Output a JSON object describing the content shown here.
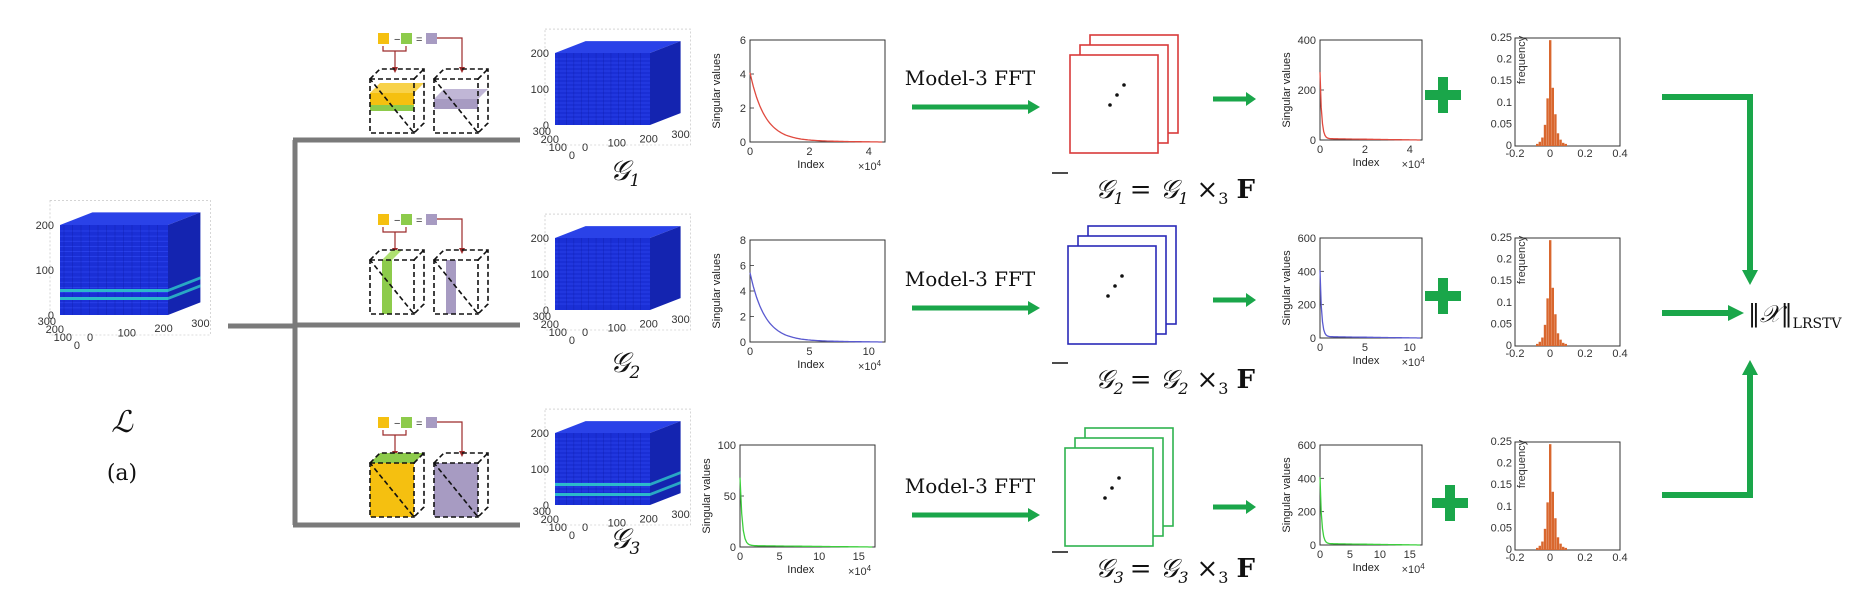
{
  "full_tensor_label": "ℒ",
  "panel_label": "(a)",
  "output_label": "‖𝒳‖",
  "output_subscript": "LRSTV",
  "colors": {
    "accent_green": "#1aa64a",
    "branch_gray": "#7a7a7a",
    "histogram": "#d9672e",
    "cube_blue": "#1a2fd6",
    "cube_highlight": "#2ec9c9",
    "slab_yellow": "#f5c010",
    "slab_green": "#8dcb4b",
    "slab_purple": "#a79bc2",
    "arrow_red": "#9c2a2a"
  },
  "operations": [
    "−",
    "="
  ],
  "cube_ticks": {
    "full": {
      "z": [
        "200",
        "100",
        "0"
      ],
      "y": [
        "300",
        "200",
        "100",
        "0"
      ],
      "x": [
        "0",
        "100",
        "200",
        "300"
      ]
    },
    "mode": {
      "z": [
        "200",
        "100",
        "0"
      ],
      "y": [
        "300",
        "200",
        "100",
        "0"
      ],
      "x": [
        "0",
        "100",
        "200",
        "300"
      ]
    }
  },
  "rows": [
    {
      "subtensor": "𝒢",
      "subscript": "1",
      "fft_label": "Model-3 FFT",
      "eq_lhs_sub": "1",
      "eq_rhs": "= 𝒢",
      "eq_rhs_sub": "1",
      "eq_op": "×",
      "eq_op_sub": "3",
      "eq_end": "F",
      "curve_color": "#e04a3f",
      "frame_color": "#d83a3a",
      "chart1": {
        "ylabel": "Singular values",
        "xlabel": "Index",
        "yticks": [
          "0",
          "2",
          "4",
          "6"
        ],
        "xticks": [
          "0",
          "2",
          "4"
        ],
        "xexp": "×10",
        "xexp_power": "4"
      },
      "chart2": {
        "ylabel": "Singular values",
        "xlabel": "Index",
        "yticks": [
          "0",
          "200",
          "400"
        ],
        "xticks": [
          "0",
          "2",
          "4"
        ],
        "xexp": "×10",
        "xexp_power": "4"
      },
      "hist": {
        "ylabel": "frequency",
        "yticks": [
          "0",
          "0.05",
          "0.1",
          "0.15",
          "0.2",
          "0.25"
        ],
        "xticks": [
          "-0.2",
          "0",
          "0.2",
          "0.4"
        ]
      }
    },
    {
      "subtensor": "𝒢",
      "subscript": "2",
      "fft_label": "Model-3 FFT",
      "eq_lhs_sub": "2",
      "eq_rhs": "= 𝒢",
      "eq_rhs_sub": "2",
      "eq_op": "×",
      "eq_op_sub": "3",
      "eq_end": "F",
      "curve_color": "#5a5ad0",
      "frame_color": "#2a2ab8",
      "chart1": {
        "ylabel": "Singular values",
        "xlabel": "Index",
        "yticks": [
          "0",
          "2",
          "4",
          "6",
          "8"
        ],
        "xticks": [
          "0",
          "5",
          "10"
        ],
        "xexp": "×10",
        "xexp_power": "4"
      },
      "chart2": {
        "ylabel": "Singular values",
        "xlabel": "Index",
        "yticks": [
          "0",
          "200",
          "400",
          "600"
        ],
        "xticks": [
          "0",
          "5",
          "10"
        ],
        "xexp": "×10",
        "xexp_power": "4"
      },
      "hist": {
        "ylabel": "frequency",
        "yticks": [
          "0",
          "0.05",
          "0.1",
          "0.15",
          "0.2",
          "0.25"
        ],
        "xticks": [
          "-0.2",
          "0",
          "0.2",
          "0.4"
        ]
      }
    },
    {
      "subtensor": "𝒢",
      "subscript": "3",
      "fft_label": "Model-3 FFT",
      "eq_lhs_sub": "3",
      "eq_rhs": "= 𝒢",
      "eq_rhs_sub": "3",
      "eq_op": "×",
      "eq_op_sub": "3",
      "eq_end": "F",
      "curve_color": "#3ccf3c",
      "frame_color": "#2fb34f",
      "chart1": {
        "ylabel": "Singular values",
        "xlabel": "Index",
        "yticks": [
          "0",
          "50",
          "100"
        ],
        "xticks": [
          "0",
          "5",
          "10",
          "15"
        ],
        "xexp": "×10",
        "xexp_power": "4"
      },
      "chart2": {
        "ylabel": "Singular values",
        "xlabel": "Index",
        "yticks": [
          "0",
          "200",
          "400",
          "600"
        ],
        "xticks": [
          "0",
          "5",
          "10",
          "15"
        ],
        "xexp": "×10",
        "xexp_power": "4"
      },
      "hist": {
        "ylabel": "frequency",
        "yticks": [
          "0",
          "0.05",
          "0.1",
          "0.15",
          "0.2",
          "0.25"
        ],
        "xticks": [
          "-0.2",
          "0",
          "0.2",
          "0.4"
        ]
      }
    }
  ]
}
